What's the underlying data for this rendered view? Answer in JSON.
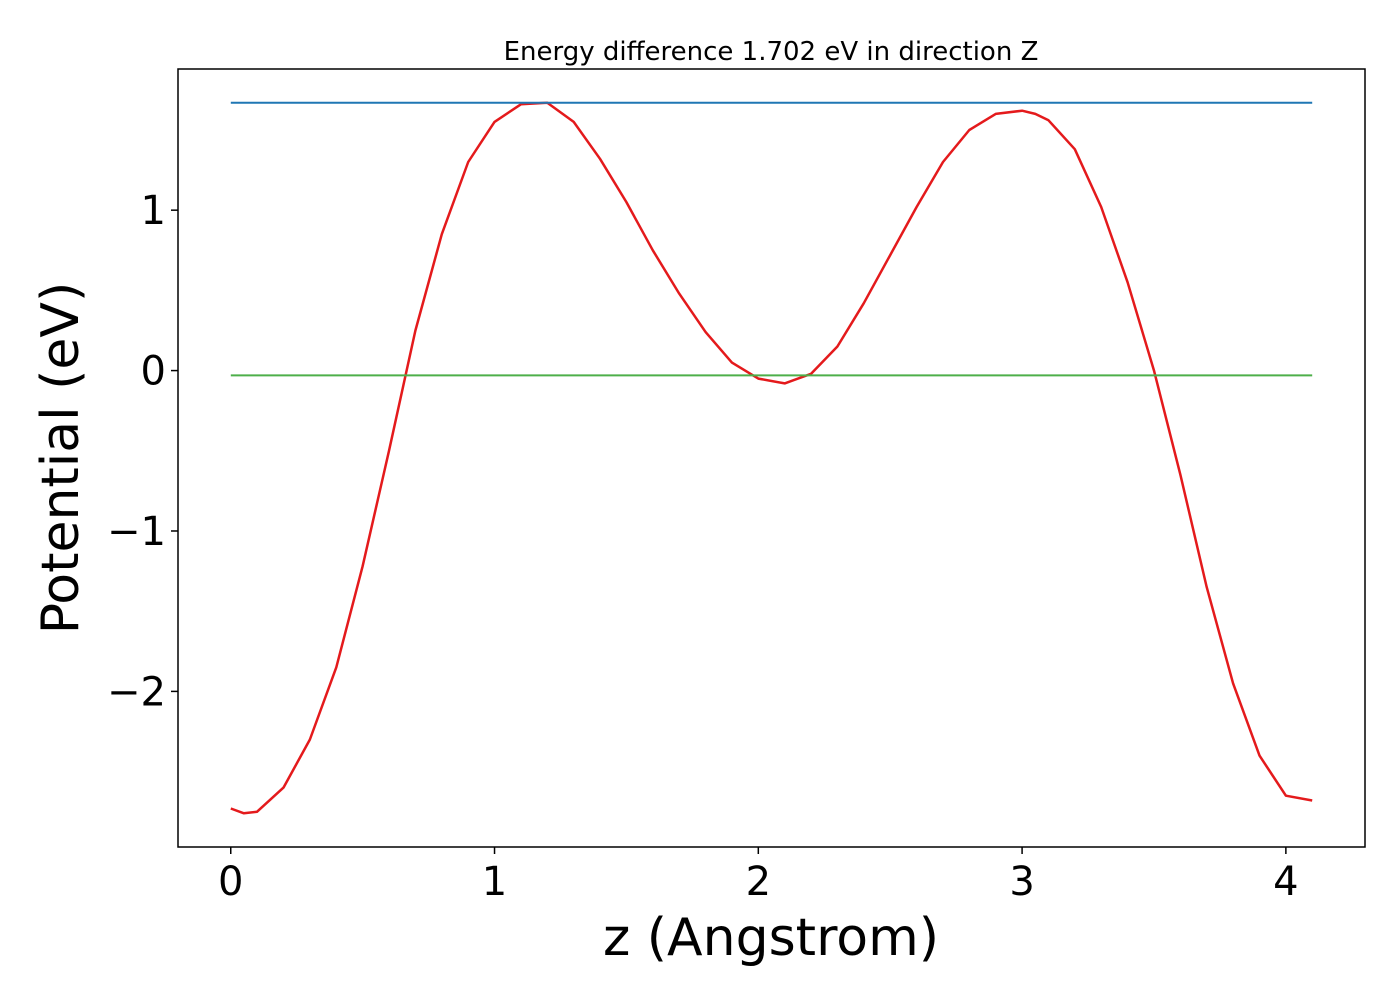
{
  "chart_data": {
    "type": "line",
    "title": "Energy difference 1.702 eV in direction Z",
    "xlabel": "z (Angstrom)",
    "ylabel": "Potential (eV)",
    "xlim": [
      -0.2,
      4.3
    ],
    "ylim": [
      -2.97,
      1.88
    ],
    "x_ticks": [
      0,
      1,
      2,
      3,
      4
    ],
    "x_tick_labels": [
      "0",
      "1",
      "2",
      "3",
      "4"
    ],
    "y_ticks": [
      -2,
      -1,
      0,
      1
    ],
    "y_tick_labels": [
      "−2",
      "−1",
      "0",
      "1"
    ],
    "grid": false,
    "legend": "none",
    "series": [
      {
        "color": "#e41a1c",
        "x": [
          0.0,
          0.05,
          0.1,
          0.2,
          0.3,
          0.4,
          0.5,
          0.6,
          0.7,
          0.8,
          0.9,
          1.0,
          1.1,
          1.2,
          1.3,
          1.4,
          1.5,
          1.6,
          1.7,
          1.8,
          1.9,
          2.0,
          2.1,
          2.2,
          2.3,
          2.4,
          2.5,
          2.6,
          2.7,
          2.8,
          2.9,
          3.0,
          3.05,
          3.1,
          3.2,
          3.3,
          3.4,
          3.5,
          3.6,
          3.7,
          3.8,
          3.9,
          4.0,
          4.1
        ],
        "y": [
          -2.73,
          -2.76,
          -2.75,
          -2.6,
          -2.3,
          -1.85,
          -1.22,
          -0.5,
          0.25,
          0.85,
          1.3,
          1.55,
          1.66,
          1.67,
          1.55,
          1.32,
          1.05,
          0.75,
          0.48,
          0.24,
          0.05,
          -0.05,
          -0.08,
          -0.02,
          0.15,
          0.42,
          0.72,
          1.02,
          1.3,
          1.5,
          1.6,
          1.62,
          1.6,
          1.56,
          1.38,
          1.02,
          0.55,
          0.0,
          -0.65,
          -1.35,
          -1.95,
          -2.4,
          -2.65,
          -2.68
        ]
      },
      {
        "color": "#1f77b4",
        "x": [
          0.0,
          4.1
        ],
        "y": [
          1.67,
          1.67
        ]
      },
      {
        "color": "#4daf4a",
        "x": [
          0.0,
          4.1
        ],
        "y": [
          -0.03,
          -0.03
        ]
      }
    ]
  }
}
